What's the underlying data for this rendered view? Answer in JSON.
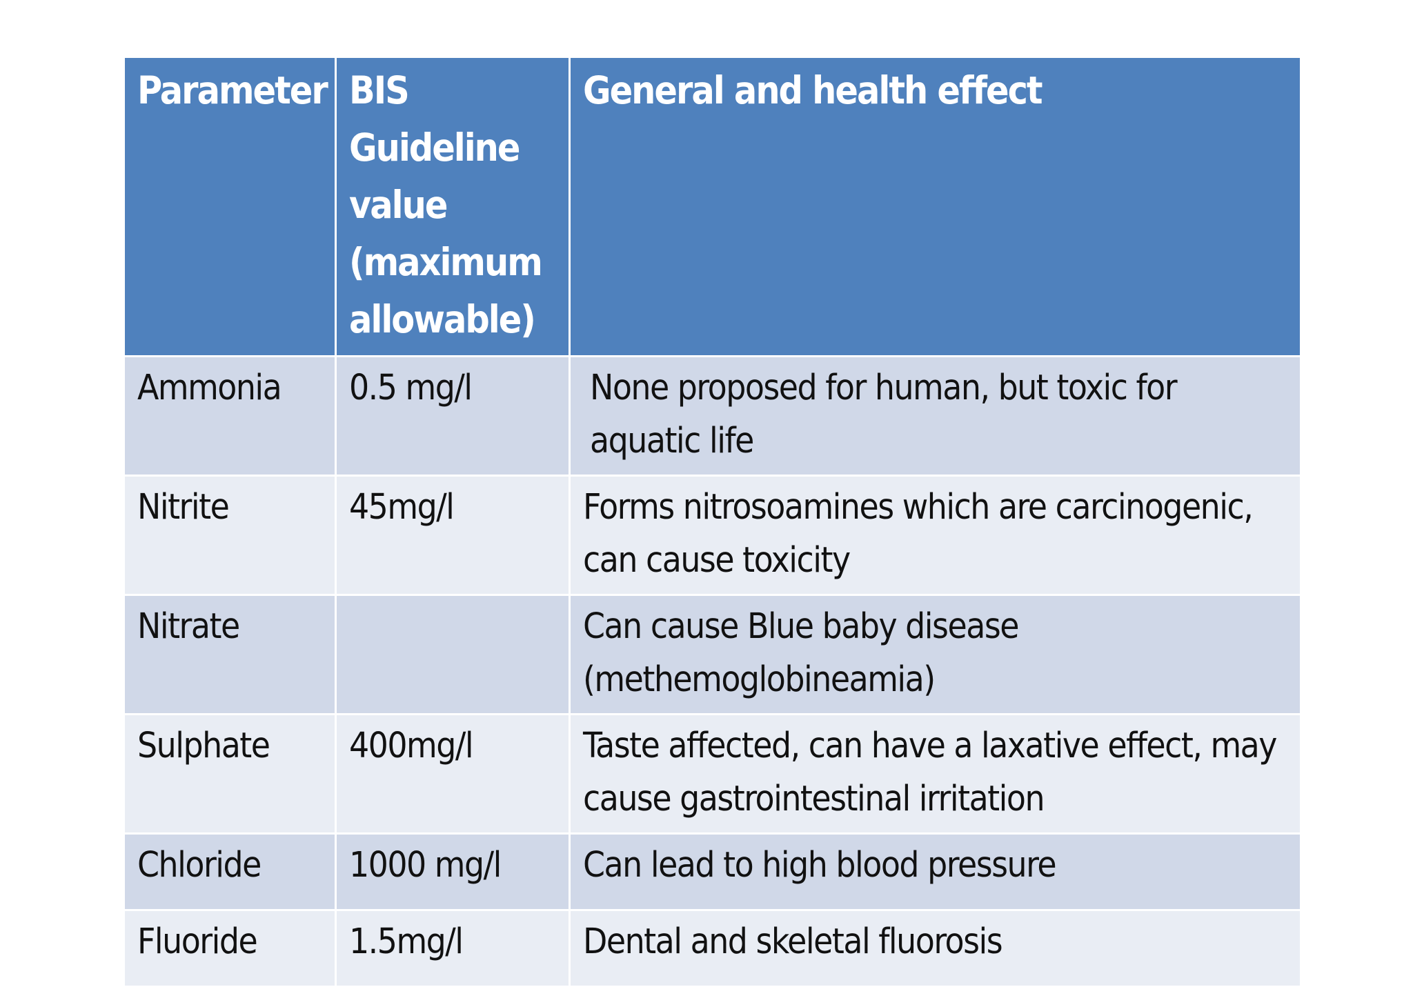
{
  "table": {
    "headers": [
      "Parameter",
      "BIS Guideline value (maximum allowable)",
      "General and health effect"
    ],
    "rows": [
      {
        "parameter": "Ammonia",
        "value": "0.5 mg/l",
        "effect": "None proposed for human, but toxic for aquatic life"
      },
      {
        "parameter": "Nitrite",
        "value": "45mg/l",
        "effect": "Forms nitrosoamines which are carcinogenic, can cause toxicity"
      },
      {
        "parameter": "Nitrate",
        "value": "",
        "effect": "Can cause Blue baby disease (methemoglobineamia)"
      },
      {
        "parameter": "Sulphate",
        "value": "400mg/l",
        "effect": "Taste affected, can have a laxative effect, may cause gastrointestinal irritation"
      },
      {
        "parameter": "Chloride",
        "value": "1000 mg/l",
        "effect": "Can lead to high blood pressure"
      },
      {
        "parameter": "Fluoride",
        "value": "1.5mg/l",
        "effect": "Dental and skeletal fluorosis"
      }
    ]
  },
  "colors": {
    "header_bg": "#4f81bd",
    "header_text": "#ffffff",
    "row_odd_bg": "#d0d8e8",
    "row_even_bg": "#e9edf4"
  }
}
